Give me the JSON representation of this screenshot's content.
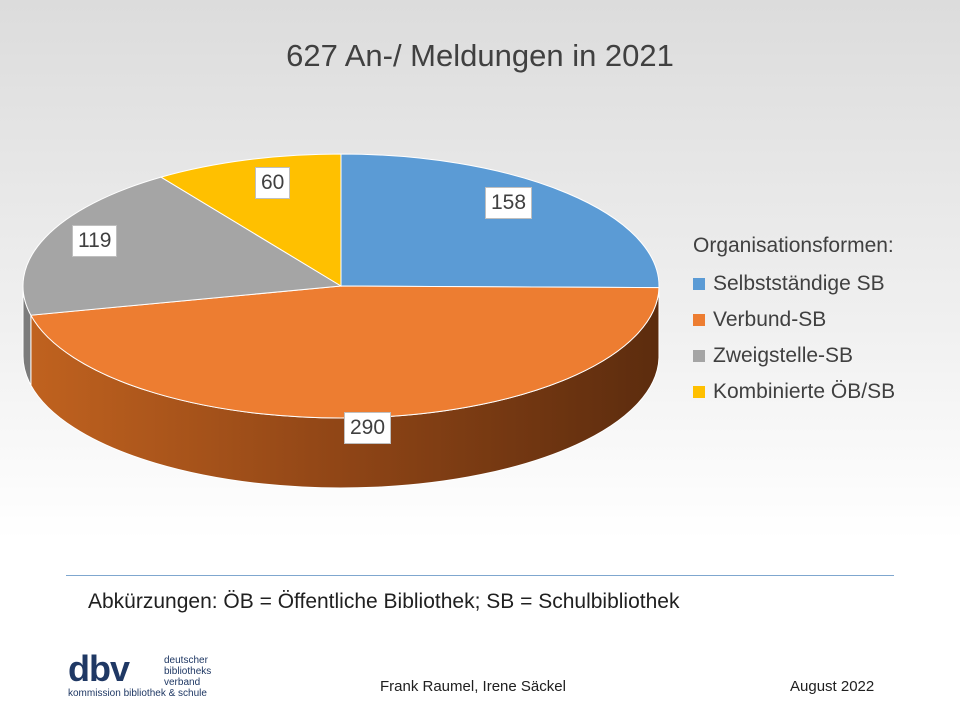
{
  "chart_data": {
    "type": "pie",
    "title": "627 An-/ Meldungen in 2021",
    "style": "3d",
    "legend_title": "Organisationsformen:",
    "legend_placement": "right",
    "categories": [
      "Selbstständige SB",
      "Verbund-SB",
      "Zweigstelle-SB",
      "Kombinierte ÖB/SB"
    ],
    "values": [
      158,
      290,
      119,
      60
    ],
    "colors": [
      "#5b9bd5",
      "#ed7d31",
      "#a5a5a5",
      "#ffc000"
    ]
  },
  "notes": {
    "abbreviations": "Abkürzungen: ÖB = Öffentliche Bibliothek; SB = Schulbibliothek"
  },
  "footer": {
    "authors": "Frank Raumel, Irene Säckel",
    "date": "August 2022"
  },
  "logo": {
    "mark": "dbv",
    "name_lines": [
      "deutscher",
      "bibliotheks",
      "verband"
    ],
    "subtitle": "kommission bibliothek & schule"
  }
}
